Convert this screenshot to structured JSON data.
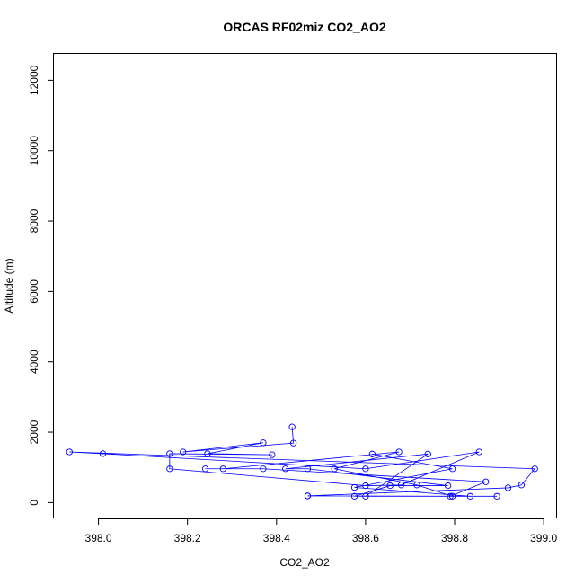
{
  "chart_data": {
    "type": "line",
    "title": "ORCAS RF02miz CO2_AO2",
    "xlabel": "CO2_AO2",
    "ylabel": "Altitude (m)",
    "xlim": [
      397.9,
      399.03
    ],
    "ylim": [
      -450,
      12750
    ],
    "xticks": [
      398.0,
      398.2,
      398.4,
      398.6,
      398.8,
      399.0
    ],
    "xtick_labels": [
      "398.0",
      "398.2",
      "398.4",
      "398.6",
      "398.8",
      "399.0"
    ],
    "yticks": [
      0,
      2000,
      4000,
      6000,
      8000,
      10000,
      12000
    ],
    "ytick_labels": [
      "0",
      "2000",
      "4000",
      "6000",
      "8000",
      "10000",
      "12000"
    ],
    "grid": false,
    "series_color": "#0000ff",
    "points": [
      {
        "x": 398.435,
        "y": 2150
      },
      {
        "x": 398.438,
        "y": 1690
      },
      {
        "x": 398.19,
        "y": 1440
      },
      {
        "x": 398.37,
        "y": 1700
      },
      {
        "x": 398.245,
        "y": 1390
      },
      {
        "x": 398.39,
        "y": 1360
      },
      {
        "x": 398.16,
        "y": 1390
      },
      {
        "x": 398.16,
        "y": 960
      },
      {
        "x": 398.6,
        "y": 480
      },
      {
        "x": 398.68,
        "y": 500
      },
      {
        "x": 398.855,
        "y": 1440
      },
      {
        "x": 398.6,
        "y": 960
      },
      {
        "x": 398.01,
        "y": 1390
      },
      {
        "x": 397.935,
        "y": 1440
      },
      {
        "x": 398.98,
        "y": 960
      },
      {
        "x": 398.95,
        "y": 500
      },
      {
        "x": 398.92,
        "y": 420
      },
      {
        "x": 398.47,
        "y": 190
      },
      {
        "x": 398.47,
        "y": 190
      },
      {
        "x": 398.79,
        "y": 180
      },
      {
        "x": 398.87,
        "y": 590
      },
      {
        "x": 398.37,
        "y": 960
      },
      {
        "x": 398.24,
        "y": 960
      },
      {
        "x": 398.28,
        "y": 960
      },
      {
        "x": 398.675,
        "y": 1440
      },
      {
        "x": 398.53,
        "y": 960
      },
      {
        "x": 398.715,
        "y": 500
      },
      {
        "x": 398.795,
        "y": 180
      },
      {
        "x": 398.6,
        "y": 180
      },
      {
        "x": 398.74,
        "y": 1380
      },
      {
        "x": 398.42,
        "y": 960
      },
      {
        "x": 398.47,
        "y": 960
      },
      {
        "x": 398.785,
        "y": 480
      },
      {
        "x": 398.655,
        "y": 480
      },
      {
        "x": 398.575,
        "y": 180
      },
      {
        "x": 398.895,
        "y": 180
      },
      {
        "x": 398.835,
        "y": 180
      },
      {
        "x": 398.575,
        "y": 430
      },
      {
        "x": 398.795,
        "y": 960
      },
      {
        "x": 398.615,
        "y": 1380
      }
    ]
  }
}
